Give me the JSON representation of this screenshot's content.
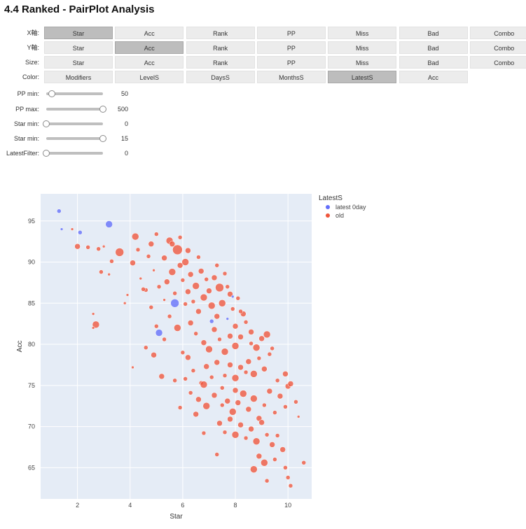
{
  "title": "4.4  Ranked - PairPlot Analysis",
  "controls": {
    "x_axis": {
      "label": "X軸:",
      "options": [
        "Star",
        "Acc",
        "Rank",
        "PP",
        "Miss",
        "Bad",
        "Combo"
      ],
      "selected": 0
    },
    "y_axis": {
      "label": "Y軸:",
      "options": [
        "Star",
        "Acc",
        "Rank",
        "PP",
        "Miss",
        "Bad",
        "Combo"
      ],
      "selected": 1
    },
    "size": {
      "label": "Size:",
      "options": [
        "Star",
        "Acc",
        "Rank",
        "PP",
        "Miss",
        "Bad",
        "Combo"
      ],
      "selected": -1
    },
    "color": {
      "label": "Color:",
      "options": [
        "Modifiers",
        "LevelS",
        "DaysS",
        "MonthsS",
        "LatestS",
        "Acc"
      ],
      "selected": 4
    }
  },
  "sliders": [
    {
      "label": "PP min:",
      "value": "50",
      "fraction": 0.1
    },
    {
      "label": "PP max:",
      "value": "500",
      "fraction": 1.0
    },
    {
      "label": "Star min:",
      "value": "0",
      "fraction": 0.0
    },
    {
      "label": "Star min:",
      "value": "15",
      "fraction": 1.0
    },
    {
      "label": "LatestFilter:",
      "value": "0",
      "fraction": 0.0
    }
  ],
  "colors": {
    "plot_bg": "#e5ecf6",
    "latest": "#636efa",
    "old": "#ef553b"
  },
  "chart_data": {
    "type": "scatter",
    "xlabel": "Star",
    "ylabel": "Acc",
    "xlim": [
      0.6,
      10.9
    ],
    "ylim": [
      61.2,
      98.3
    ],
    "xticks": [
      2,
      4,
      6,
      8,
      10
    ],
    "yticks": [
      65,
      70,
      75,
      80,
      85,
      90,
      95
    ],
    "grid": true,
    "legend": {
      "title": "LatestS",
      "placement": "top-right",
      "entries": [
        "latest 0day",
        "old"
      ]
    },
    "series": [
      {
        "name": "latest 0day",
        "color": "#636efa",
        "points": [
          [
            1.3,
            96.2,
            3
          ],
          [
            1.4,
            94.0,
            2
          ],
          [
            2.1,
            93.6,
            3
          ],
          [
            3.2,
            94.6,
            5
          ],
          [
            5.7,
            85.0,
            6
          ],
          [
            5.1,
            81.4,
            5
          ],
          [
            7.1,
            82.8,
            3
          ],
          [
            7.9,
            85.8,
            2
          ],
          [
            7.7,
            83.1,
            2
          ]
        ]
      },
      {
        "name": "old",
        "color": "#ef553b",
        "points": [
          [
            1.8,
            94.0,
            2
          ],
          [
            2.0,
            91.9,
            4
          ],
          [
            2.4,
            91.8,
            3
          ],
          [
            2.8,
            91.6,
            3
          ],
          [
            3.0,
            91.9,
            2
          ],
          [
            2.9,
            88.8,
            3
          ],
          [
            3.3,
            90.1,
            3
          ],
          [
            3.6,
            91.2,
            6
          ],
          [
            3.2,
            88.5,
            2
          ],
          [
            3.9,
            86.0,
            2
          ],
          [
            4.1,
            89.9,
            4
          ],
          [
            4.3,
            91.5,
            3
          ],
          [
            4.2,
            93.1,
            5
          ],
          [
            4.4,
            88.0,
            2
          ],
          [
            4.7,
            90.7,
            3
          ],
          [
            4.6,
            86.6,
            3
          ],
          [
            4.8,
            92.2,
            4
          ],
          [
            5.0,
            93.4,
            3
          ],
          [
            4.9,
            89.0,
            2
          ],
          [
            5.1,
            87.0,
            3
          ],
          [
            5.3,
            90.5,
            4
          ],
          [
            5.5,
            92.6,
            5
          ],
          [
            5.8,
            91.5,
            7
          ],
          [
            5.6,
            88.8,
            5
          ],
          [
            5.4,
            87.6,
            4
          ],
          [
            5.7,
            86.2,
            3
          ],
          [
            5.3,
            85.4,
            2
          ],
          [
            5.9,
            89.6,
            4
          ],
          [
            6.1,
            90.0,
            5
          ],
          [
            6.3,
            88.5,
            4
          ],
          [
            6.0,
            87.8,
            3
          ],
          [
            6.2,
            86.4,
            4
          ],
          [
            6.5,
            87.1,
            5
          ],
          [
            6.4,
            85.2,
            3
          ],
          [
            6.7,
            88.9,
            4
          ],
          [
            6.9,
            87.9,
            3
          ],
          [
            6.6,
            84.0,
            4
          ],
          [
            6.8,
            85.7,
            5
          ],
          [
            7.0,
            86.5,
            4
          ],
          [
            7.2,
            88.1,
            4
          ],
          [
            7.1,
            84.7,
            5
          ],
          [
            7.3,
            83.4,
            4
          ],
          [
            7.4,
            86.9,
            6
          ],
          [
            7.5,
            85.0,
            5
          ],
          [
            7.6,
            88.6,
            3
          ],
          [
            7.8,
            86.1,
            4
          ],
          [
            7.9,
            84.3,
            3
          ],
          [
            8.0,
            82.2,
            4
          ],
          [
            8.1,
            85.6,
            3
          ],
          [
            8.3,
            83.7,
            4
          ],
          [
            6.1,
            84.9,
            3
          ],
          [
            6.3,
            82.6,
            4
          ],
          [
            6.5,
            81.3,
            3
          ],
          [
            6.8,
            80.2,
            4
          ],
          [
            7.0,
            79.4,
            5
          ],
          [
            7.2,
            81.8,
            4
          ],
          [
            7.4,
            80.6,
            3
          ],
          [
            7.6,
            79.1,
            5
          ],
          [
            7.8,
            81.0,
            4
          ],
          [
            8.0,
            79.8,
            5
          ],
          [
            8.2,
            80.9,
            4
          ],
          [
            8.4,
            82.7,
            3
          ],
          [
            8.6,
            81.5,
            4
          ],
          [
            8.8,
            79.6,
            5
          ],
          [
            9.0,
            80.7,
            4
          ],
          [
            9.2,
            81.2,
            5
          ],
          [
            8.5,
            77.9,
            4
          ],
          [
            8.7,
            76.4,
            5
          ],
          [
            8.9,
            78.3,
            3
          ],
          [
            9.1,
            77.0,
            4
          ],
          [
            9.3,
            78.8,
            3
          ],
          [
            8.2,
            77.2,
            4
          ],
          [
            8.0,
            75.9,
            5
          ],
          [
            7.8,
            77.5,
            4
          ],
          [
            7.6,
            76.2,
            3
          ],
          [
            7.3,
            77.8,
            4
          ],
          [
            7.1,
            76.0,
            3
          ],
          [
            6.9,
            77.3,
            4
          ],
          [
            6.7,
            75.3,
            3
          ],
          [
            6.4,
            76.8,
            3
          ],
          [
            6.2,
            78.4,
            4
          ],
          [
            6.0,
            79.0,
            3
          ],
          [
            6.3,
            74.1,
            3
          ],
          [
            6.6,
            73.3,
            4
          ],
          [
            6.9,
            72.5,
            5
          ],
          [
            7.2,
            73.8,
            4
          ],
          [
            7.5,
            74.7,
            3
          ],
          [
            7.7,
            73.1,
            4
          ],
          [
            7.9,
            71.8,
            5
          ],
          [
            8.1,
            72.9,
            4
          ],
          [
            8.3,
            74.0,
            5
          ],
          [
            8.5,
            72.1,
            4
          ],
          [
            8.7,
            73.4,
            5
          ],
          [
            8.9,
            71.0,
            4
          ],
          [
            9.1,
            72.6,
            3
          ],
          [
            9.3,
            74.3,
            4
          ],
          [
            9.5,
            71.7,
            3
          ],
          [
            9.7,
            73.7,
            4
          ],
          [
            9.9,
            72.4,
            3
          ],
          [
            10.0,
            74.9,
            4
          ],
          [
            10.1,
            75.2,
            4
          ],
          [
            10.3,
            73.0,
            3
          ],
          [
            9.9,
            76.4,
            4
          ],
          [
            9.6,
            75.6,
            3
          ],
          [
            7.4,
            70.4,
            4
          ],
          [
            7.6,
            69.3,
            3
          ],
          [
            7.8,
            70.9,
            4
          ],
          [
            8.0,
            69.0,
            5
          ],
          [
            8.2,
            70.2,
            4
          ],
          [
            8.4,
            68.6,
            3
          ],
          [
            8.6,
            69.7,
            4
          ],
          [
            8.8,
            68.2,
            5
          ],
          [
            9.0,
            70.5,
            4
          ],
          [
            9.2,
            69.0,
            3
          ],
          [
            9.4,
            67.8,
            4
          ],
          [
            9.6,
            68.9,
            3
          ],
          [
            9.8,
            67.2,
            4
          ],
          [
            8.9,
            66.4,
            4
          ],
          [
            9.1,
            65.6,
            5
          ],
          [
            8.7,
            64.8,
            5
          ],
          [
            9.5,
            66.0,
            3
          ],
          [
            9.9,
            65.0,
            3
          ],
          [
            10.0,
            63.8,
            3
          ],
          [
            10.1,
            62.8,
            3
          ],
          [
            10.6,
            65.6,
            3
          ],
          [
            9.2,
            63.4,
            3
          ],
          [
            7.3,
            66.6,
            3
          ],
          [
            6.8,
            69.2,
            3
          ],
          [
            6.5,
            71.5,
            4
          ],
          [
            5.9,
            72.3,
            3
          ],
          [
            5.7,
            75.6,
            3
          ],
          [
            5.2,
            76.1,
            4
          ],
          [
            4.9,
            78.7,
            4
          ],
          [
            4.6,
            79.6,
            3
          ],
          [
            4.1,
            77.2,
            2
          ],
          [
            5.0,
            82.2,
            3
          ],
          [
            5.3,
            80.6,
            3
          ],
          [
            5.8,
            82.0,
            5
          ],
          [
            5.5,
            83.4,
            3
          ],
          [
            4.8,
            84.5,
            3
          ],
          [
            4.5,
            86.7,
            3
          ],
          [
            3.8,
            85.0,
            2
          ],
          [
            2.6,
            83.7,
            2
          ],
          [
            2.7,
            82.4,
            5
          ],
          [
            2.6,
            82.0,
            2
          ],
          [
            6.6,
            90.6,
            3
          ],
          [
            6.2,
            91.4,
            4
          ],
          [
            5.9,
            93.0,
            3
          ],
          [
            5.6,
            92.2,
            4
          ],
          [
            7.3,
            89.6,
            3
          ],
          [
            7.7,
            87.0,
            3
          ],
          [
            8.2,
            84.0,
            3
          ],
          [
            8.6,
            80.1,
            3
          ],
          [
            8.4,
            76.6,
            3
          ],
          [
            8.0,
            74.4,
            4
          ],
          [
            7.5,
            72.6,
            3
          ],
          [
            6.8,
            75.1,
            5
          ],
          [
            6.1,
            75.8,
            3
          ],
          [
            10.4,
            71.2,
            2
          ],
          [
            9.4,
            79.5,
            3
          ]
        ]
      }
    ]
  }
}
